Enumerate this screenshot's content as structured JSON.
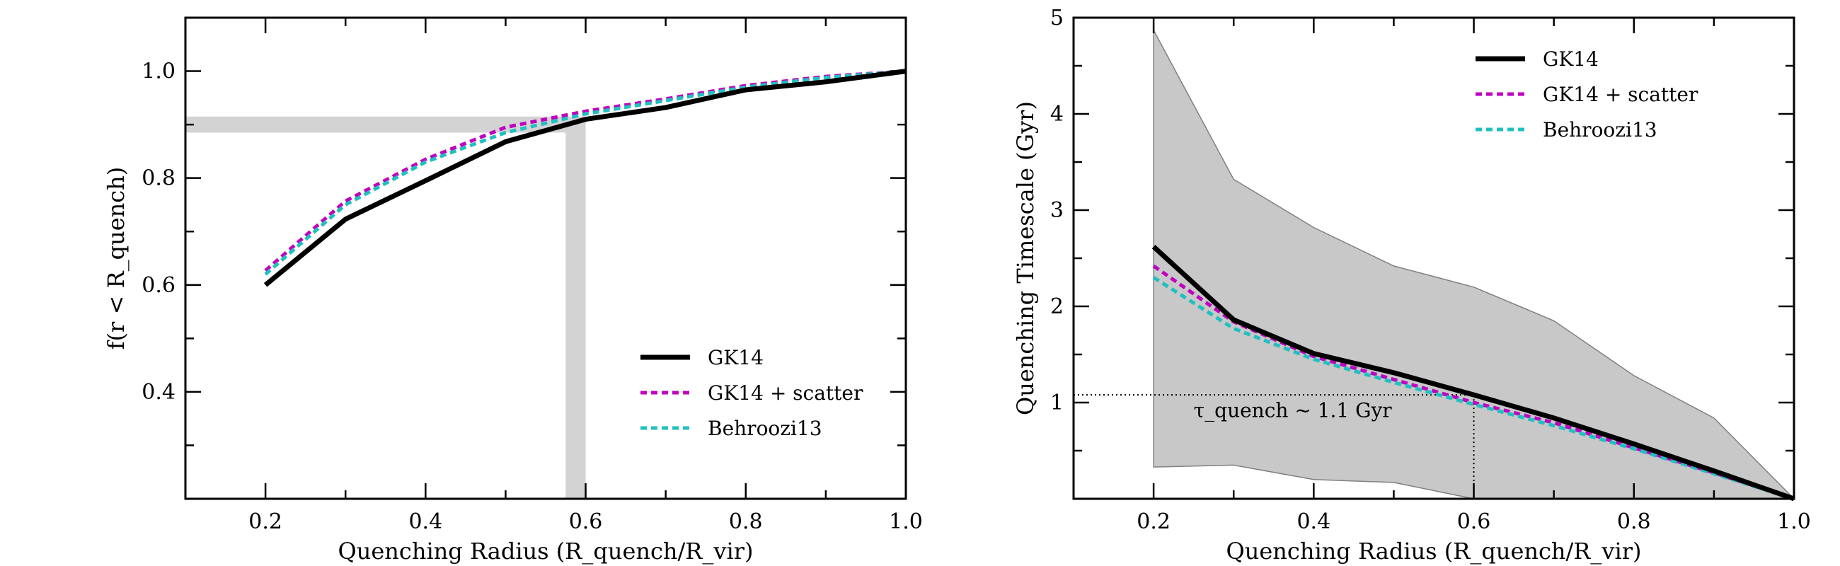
{
  "chart_data": [
    {
      "type": "line",
      "xlabel": "Quenching Radius (R_quench/R_vir)",
      "ylabel": "f(r < R_quench)",
      "xlim": [
        0.1,
        1.0
      ],
      "ylim": [
        0.2,
        1.1
      ],
      "xticks": [
        0.2,
        0.4,
        0.6,
        0.8,
        1.0
      ],
      "xtick_labels": [
        "0.2",
        "0.4",
        "0.6",
        "0.8",
        "1.0"
      ],
      "yticks": [
        0.4,
        0.6,
        0.8,
        1.0
      ],
      "ytick_labels": [
        "0.4",
        "0.6",
        "0.8",
        "1.0"
      ],
      "legend": "lower-right",
      "x": [
        0.2,
        0.3,
        0.4,
        0.5,
        0.6,
        0.7,
        0.8,
        0.9,
        1.0
      ],
      "series": [
        {
          "name": "GK14",
          "values": [
            0.6,
            0.723,
            0.795,
            0.868,
            0.91,
            0.932,
            0.965,
            0.98,
            1.0
          ],
          "color": "#000000",
          "style": "solid"
        },
        {
          "name": "GK14 + scatter",
          "values": [
            0.627,
            0.757,
            0.835,
            0.895,
            0.925,
            0.948,
            0.973,
            0.99,
            1.0
          ],
          "color": "#c000c0",
          "style": "dashed"
        },
        {
          "name": "Behroozi13",
          "values": [
            0.62,
            0.75,
            0.83,
            0.885,
            0.92,
            0.945,
            0.97,
            0.988,
            1.0
          ],
          "color": "#20c0c0",
          "style": "dashed"
        }
      ],
      "highlight": {
        "color": "#d3d3d3",
        "horizontal_band_y": [
          0.885,
          0.915
        ],
        "vertical_band_x": [
          0.575,
          0.6
        ]
      }
    },
    {
      "type": "line",
      "xlabel": "Quenching Radius (R_quench/R_vir)",
      "ylabel": "Quenching Timescale (Gyr)",
      "xlim": [
        0.1,
        1.0
      ],
      "ylim": [
        0.0,
        5.0
      ],
      "xticks": [
        0.2,
        0.4,
        0.6,
        0.8,
        1.0
      ],
      "xtick_labels": [
        "0.2",
        "0.4",
        "0.6",
        "0.8",
        "1.0"
      ],
      "yticks": [
        1,
        2,
        3,
        4,
        5
      ],
      "ytick_labels": [
        "1",
        "2",
        "3",
        "4",
        "5"
      ],
      "legend": "top-right",
      "x": [
        0.2,
        0.3,
        0.4,
        0.5,
        0.6,
        0.7,
        0.8,
        0.9,
        1.0
      ],
      "series": [
        {
          "name": "GK14",
          "values": [
            2.62,
            1.86,
            1.51,
            1.31,
            1.08,
            0.84,
            0.57,
            0.29,
            0.0
          ],
          "color": "#000000",
          "style": "solid"
        },
        {
          "name": "GK14 + scatter",
          "values": [
            2.42,
            1.84,
            1.48,
            1.24,
            1.0,
            0.79,
            0.53,
            0.27,
            0.0
          ],
          "color": "#c000c0",
          "style": "dashed"
        },
        {
          "name": "Behroozi13",
          "values": [
            2.3,
            1.77,
            1.45,
            1.21,
            0.98,
            0.76,
            0.52,
            0.26,
            0.0
          ],
          "color": "#20c0c0",
          "style": "dashed"
        }
      ],
      "band": {
        "x": [
          0.2,
          0.3,
          0.4,
          0.5,
          0.6,
          0.7,
          0.8,
          0.9,
          1.0
        ],
        "lower": [
          0.33,
          0.35,
          0.2,
          0.17,
          -0.1,
          -0.1,
          -0.1,
          -0.1,
          0.0
        ],
        "upper": [
          4.87,
          3.32,
          2.82,
          2.42,
          2.2,
          1.85,
          1.28,
          0.84,
          0.0
        ],
        "color": "#c8c8c8"
      },
      "reference": {
        "x": 0.6,
        "y": 1.08,
        "style": "dotted"
      },
      "annotation": {
        "text": "τ_quench ~ 1.1 Gyr",
        "x": 0.25,
        "y": 0.85
      }
    }
  ]
}
